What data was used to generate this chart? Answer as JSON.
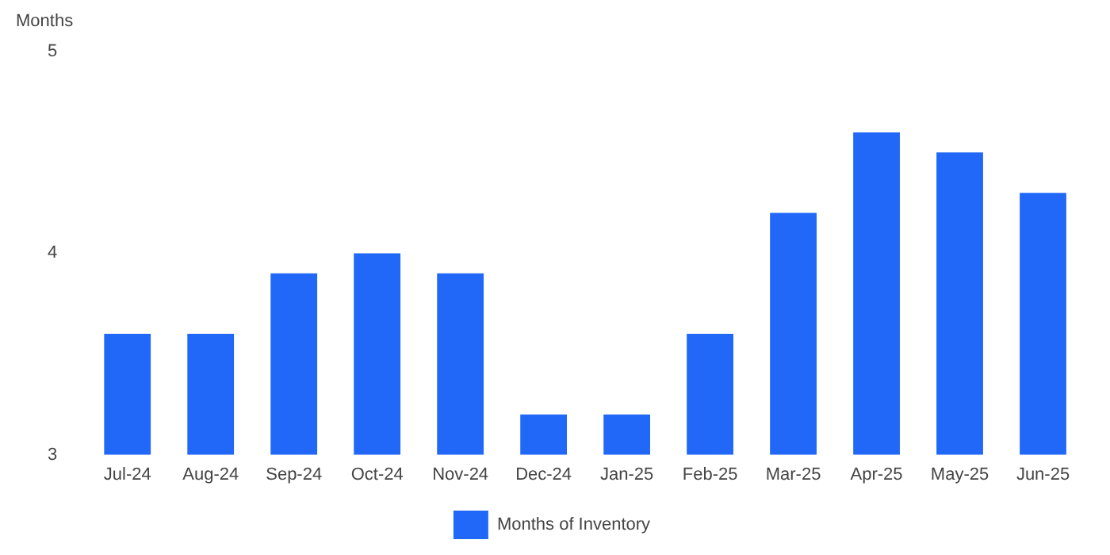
{
  "chart_data": {
    "type": "bar",
    "ylabel": "Months",
    "categories": [
      "Jul-24",
      "Aug-24",
      "Sep-24",
      "Oct-24",
      "Nov-24",
      "Dec-24",
      "Jan-25",
      "Feb-25",
      "Mar-25",
      "Apr-25",
      "May-25",
      "Jun-25"
    ],
    "series": [
      {
        "name": "Months of Inventory",
        "color": "#2168f8",
        "values": [
          3.6,
          3.6,
          3.9,
          4.0,
          3.9,
          3.2,
          3.2,
          3.6,
          4.2,
          4.6,
          4.5,
          4.3
        ]
      }
    ],
    "ylim": [
      3,
      5
    ],
    "yticks": [
      3,
      4,
      5
    ],
    "grid": false,
    "legend": "bottom"
  }
}
